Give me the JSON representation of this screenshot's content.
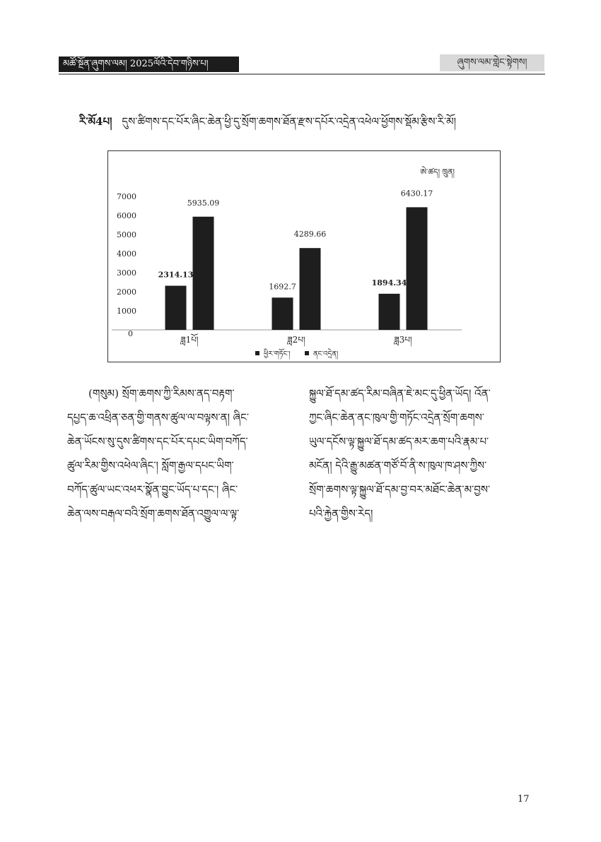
{
  "header": {
    "journal": "མཚོ་སྔོན་ཞུགས་ལམ། 2025ལོའི་དེབ་གཉིས་པ།",
    "section": "ཞུགས་ལམ་གླེང་སྟེགས།"
  },
  "figure": {
    "number": "རི་མོ4པ།",
    "caption": "དུས་ཚིགས་དང་པོར་ཞིང་ཆེན་ཕྱི་དུ་སྲོག་ཆགས་ཐོན་རྫས་དཔོར་འདྲེན་འཕེལ་ཕྱོགས་སྡོམ་རྩིས་རི་མོ།"
  },
  "chart_data": {
    "type": "bar",
    "unit": "ཨེ་ཚད། ཁྲུན།",
    "categories": [
      "ཟླ1པོ།",
      "ཟླ2པ།",
      "ཟླ3པ།"
    ],
    "series": [
      {
        "name": "ཕྱིར་གཏོང་།",
        "values": [
          2314.13,
          1692.7,
          1894.34
        ],
        "labels": [
          "2314.13",
          "1692.7",
          "1894.34"
        ]
      },
      {
        "name": "ནང་འདྲེན།",
        "values": [
          5935.09,
          4289.66,
          6430.17
        ],
        "labels": [
          "5935.09",
          "4289.66",
          "6430.17"
        ]
      }
    ],
    "yticks": [
      "0",
      "1000",
      "2000",
      "3000",
      "4000",
      "5000",
      "6000",
      "7000"
    ],
    "ylim": [
      0,
      7000
    ],
    "grid": false,
    "legend": "bottom",
    "bar_color": "#1e1e1e"
  },
  "body": {
    "left_lines": [
      "(གསུམ) སྲོག་ཆགས་ཀྱི་རིམས་ནད་བརྟག་",
      "དཔྱད་ཆ་འཕྲིན་ཅན་གྱི་གནས་ཚུལ་ལ་བལྟས་ན། ཞིང་",
      "ཆེན་ཡོངས་སུ་དུས་ཚིགས་དང་པོར་དཔང་ཡིག་བཀོད་",
      "ཚུལ་རིམ་གྱིས་འཕེལ་ཞིང་། སློག་རྒྱལ་དཔང་ཡིག་",
      "བཀོད་ཚུལ་ཡང་འཕར་སྣོན་བྱུང་ཡོད་པ་དང་། ཞིང་",
      "ཆེན་ལས་བརྒལ་བའི་སྲོག་ཆགས་ཐོན་འགྱུལ་ལ་ལྟ་"
    ],
    "right_lines": [
      "སྐྱུལ་ཐོ་དམ་ཚད་རིམ་བཞིན་ཇེ་མང་དུ་ཕྱིན་ཡོད། འོན་",
      "ཀྱང་ཞིང་ཆེན་ནང་ཁུལ་གྱི་གཏོང་འདྲེན་སྲོག་ཆགས་",
      "ཡུལ་དངོས་ལྟ་སྐྱུལ་ཐོ་དམ་ཚད་མར་ཆག་པའི་རྣམ་པ་",
      "མངོན། དེའི་རྒྱུ་མཚན་གཙོ་བོ་ནི་ས་ཁུལ་ཁ་ཤས་ཀྱིས་",
      "སྲོག་ཆགས་ལྟ་སྐྱུལ་ཐོ་དམ་བྱ་བར་མཐོང་ཆེན་མ་བྱས་",
      "པའི་རྐྱེན་གྱིས་རེད།"
    ]
  },
  "page_number": "17"
}
